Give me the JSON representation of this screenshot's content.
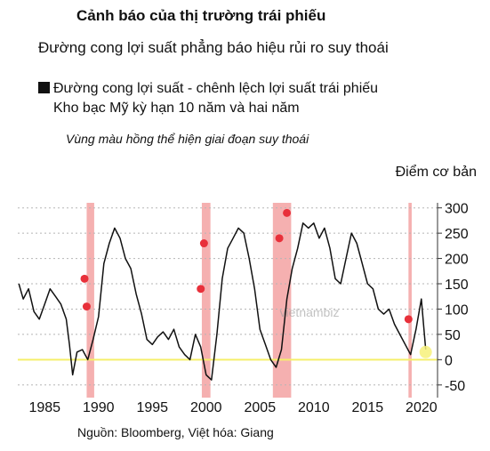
{
  "header": {
    "title": "Cảnh báo của thị trường trái phiếu",
    "subtitle": "Đường cong lợi suất phẳng báo hiệu rủi ro suy thoái",
    "legend_line1": "Đường cong lợi suất - chênh lệch lợi suất trái phiếu",
    "legend_line2": "Kho bạc Mỹ kỳ hạn 10 năm và hai năm",
    "annotation": "Vùng màu hồng thể hiện giai đoạn suy thoái",
    "unit_label": "Điểm cơ bản",
    "source": "Nguồn: Bloomberg, Việt hóa: Giang",
    "watermark": "vietnambiz"
  },
  "colors": {
    "line": "#111111",
    "recession": "#f4a7a7",
    "zero_line": "#f5ef6a",
    "marker": "#e8303a",
    "grid": "#b5b5b5",
    "current_marker": "#f7f17a"
  },
  "chart_data": {
    "type": "line",
    "title": "Cảnh báo của thị trường trái phiếu",
    "ylabel": "Điểm cơ bản",
    "xlim": [
      1982.5,
      2021.5
    ],
    "ylim": [
      -75,
      310
    ],
    "x_ticks": [
      1985,
      1990,
      1995,
      2000,
      2005,
      2010,
      2015,
      2020
    ],
    "x_tick_labels": [
      "1985",
      "1990",
      "1995",
      "2000",
      "2005",
      "2010",
      "2015",
      "2020"
    ],
    "y_ticks": [
      -50,
      0,
      50,
      100,
      150,
      200,
      250,
      300
    ],
    "y_tick_labels": [
      "-50",
      "0",
      "50",
      "100",
      "150",
      "200",
      "250",
      "300"
    ],
    "grid": true,
    "recessions": [
      [
        1988.9,
        1989.6
      ],
      [
        1999.6,
        2000.4
      ],
      [
        2006.2,
        2007.9
      ],
      [
        2018.8,
        2019.1
      ]
    ],
    "markers": [
      {
        "x": 1988.7,
        "y": 160
      },
      {
        "x": 1988.9,
        "y": 105
      },
      {
        "x": 1999.5,
        "y": 140
      },
      {
        "x": 1999.8,
        "y": 230
      },
      {
        "x": 2006.8,
        "y": 240
      },
      {
        "x": 2007.5,
        "y": 290
      },
      {
        "x": 2018.8,
        "y": 80
      }
    ],
    "current_point": {
      "x": 2020.4,
      "y": 15
    },
    "series": [
      {
        "x": [
          1982.6,
          1983.0,
          1983.5,
          1984.0,
          1984.5,
          1985.0,
          1985.5,
          1986.0,
          1986.5,
          1987.0,
          1987.3,
          1987.6,
          1988.0,
          1988.5,
          1989.0,
          1989.5,
          1990.0,
          1990.5,
          1991.0,
          1991.5,
          1992.0,
          1992.5,
          1993.0,
          1993.5,
          1994.0,
          1994.5,
          1995.0,
          1995.5,
          1996.0,
          1996.5,
          1997.0,
          1997.5,
          1998.0,
          1998.5,
          1999.0,
          1999.5,
          2000.0,
          2000.5,
          2001.0,
          2001.5,
          2002.0,
          2002.5,
          2003.0,
          2003.5,
          2004.0,
          2004.5,
          2005.0,
          2005.5,
          2006.0,
          2006.5,
          2007.0,
          2007.5,
          2008.0,
          2008.5,
          2009.0,
          2009.5,
          2010.0,
          2010.5,
          2011.0,
          2011.5,
          2012.0,
          2012.5,
          2013.0,
          2013.5,
          2014.0,
          2014.5,
          2015.0,
          2015.5,
          2016.0,
          2016.5,
          2017.0,
          2017.5,
          2018.0,
          2018.5,
          2019.0,
          2019.5,
          2020.0,
          2020.4
        ],
        "y": [
          150,
          120,
          140,
          95,
          80,
          110,
          140,
          125,
          110,
          80,
          30,
          -30,
          15,
          20,
          0,
          40,
          85,
          190,
          230,
          260,
          240,
          200,
          180,
          130,
          90,
          40,
          30,
          45,
          55,
          40,
          60,
          25,
          10,
          0,
          50,
          25,
          -30,
          -40,
          50,
          160,
          220,
          240,
          260,
          250,
          200,
          140,
          60,
          30,
          0,
          -15,
          20,
          120,
          180,
          220,
          270,
          260,
          270,
          240,
          260,
          220,
          160,
          150,
          200,
          250,
          230,
          190,
          150,
          140,
          100,
          90,
          100,
          70,
          50,
          30,
          10,
          60,
          120,
          20
        ]
      }
    ]
  }
}
